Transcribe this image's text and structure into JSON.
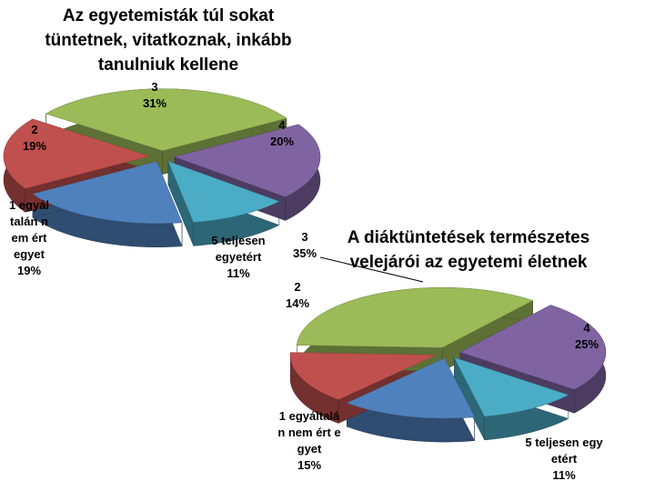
{
  "chart_data": [
    {
      "type": "pie",
      "title": "Az egyetemisták túl sokat tüntetnek, vitatkoznak, inkább tanulniuk kellene",
      "categories": [
        "1 egyáltalán nem ért egyet",
        "2",
        "3",
        "4",
        "5 teljesen egyetért"
      ],
      "values": [
        19,
        19,
        31,
        20,
        11
      ],
      "value_labels": [
        "19%",
        "19%",
        "31%",
        "20%",
        "11%"
      ],
      "colors": [
        "#4f81bd",
        "#c0504d",
        "#9bbb59",
        "#8064a2",
        "#4bacc6"
      ]
    },
    {
      "type": "pie",
      "title": "A diáktüntetések természetes velejárói az egyetemi életnek",
      "categories": [
        "1 egyáltalán nem ért egyet",
        "2",
        "3",
        "4",
        "5 teljesen egyetért"
      ],
      "values": [
        15,
        14,
        35,
        25,
        11
      ],
      "value_labels": [
        "15%",
        "14%",
        "35%",
        "25%",
        "11%"
      ],
      "colors": [
        "#4f81bd",
        "#c0504d",
        "#9bbb59",
        "#8064a2",
        "#4bacc6"
      ]
    }
  ]
}
